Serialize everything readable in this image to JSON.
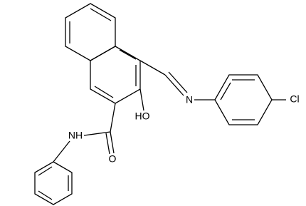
{
  "labels": [
    "HO",
    "N",
    "Cl",
    "NH",
    "O"
  ]
}
